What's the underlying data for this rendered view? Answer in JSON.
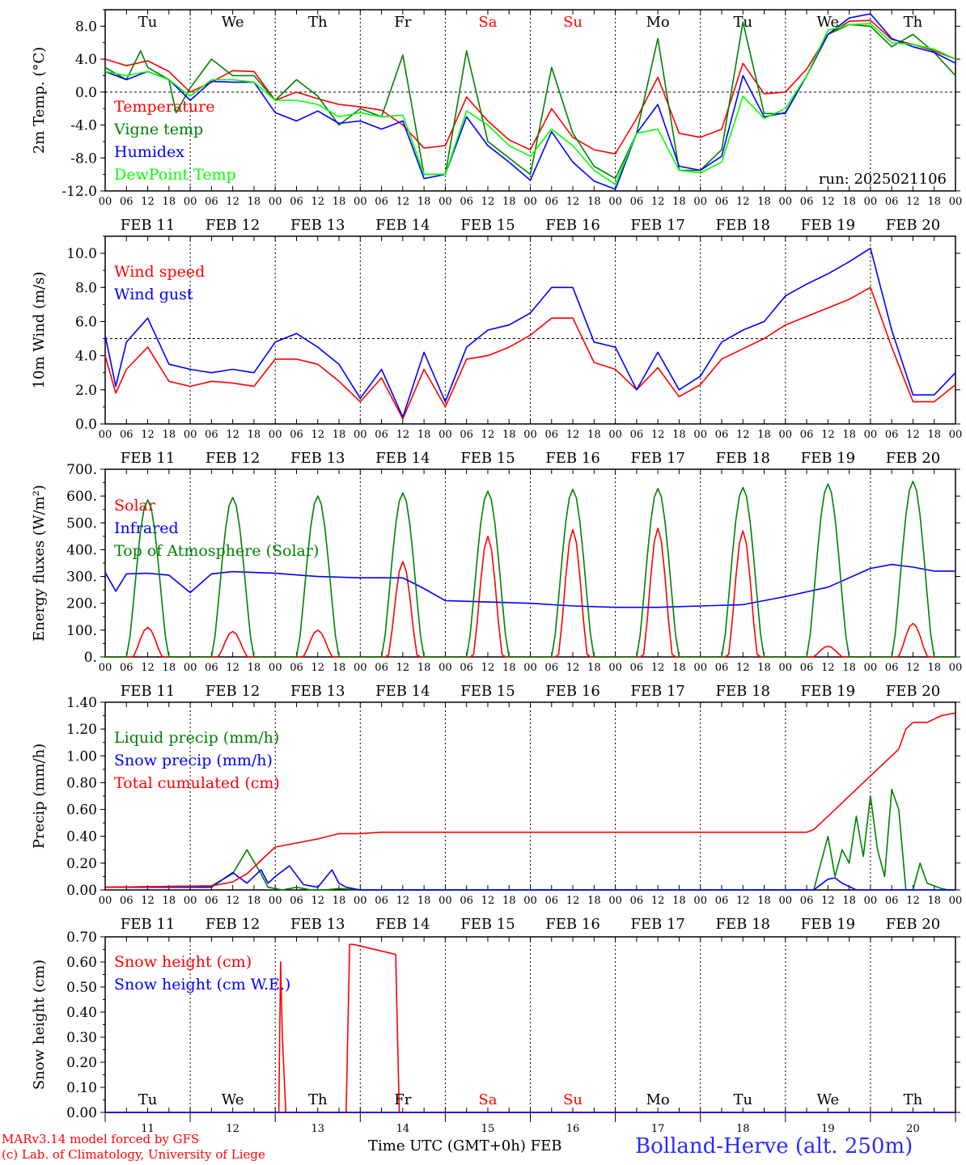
{
  "chart_data": [
    {
      "type": "line",
      "ylabel": "2m Temp. (°C)",
      "ylim": [
        -12,
        10
      ],
      "yticks": [
        "8.0",
        "4.0",
        "0.0",
        "-4.0",
        "-8.0",
        "-12.0"
      ],
      "yticks_values": [
        8,
        4,
        0,
        -4,
        -8,
        -12
      ],
      "ref_line": 0,
      "run_label": "run: 2025021106",
      "day_names": [
        "Tu",
        "We",
        "Th",
        "Fr",
        "Sa",
        "Su",
        "Mo",
        "Tu",
        "We",
        "Th"
      ],
      "series": [
        {
          "name": "Temperature",
          "color": "#ff0000",
          "x": [
            0,
            6,
            12,
            18,
            24,
            30,
            36,
            42,
            48,
            54,
            60,
            66,
            72,
            78,
            84,
            90,
            96,
            102,
            108,
            114,
            120,
            126,
            132,
            138,
            144,
            150,
            156,
            162,
            168,
            174,
            180,
            186,
            192,
            198,
            204,
            210,
            216,
            222,
            228,
            234,
            240
          ],
          "values": [
            4,
            3.2,
            3.8,
            2.5,
            0,
            1.2,
            2.6,
            2.5,
            -1,
            0,
            -0.8,
            -1.5,
            -1.8,
            -2.2,
            -4,
            -6.8,
            -6.5,
            -0.6,
            -3.5,
            -5.8,
            -7,
            -2,
            -5.5,
            -7,
            -7.5,
            -3.2,
            1.8,
            -5,
            -5.5,
            -4.5,
            3.5,
            -0.2,
            0,
            2.8,
            7,
            8.6,
            8.7,
            6.4,
            5.8,
            5,
            4
          ]
        },
        {
          "name": "Vigne temp",
          "color": "#008000",
          "x": [
            0,
            6,
            10,
            12,
            18,
            20,
            24,
            30,
            36,
            42,
            48,
            54,
            60,
            66,
            72,
            78,
            84,
            90,
            96,
            102,
            108,
            114,
            120,
            126,
            132,
            138,
            144,
            150,
            156,
            162,
            168,
            174,
            180,
            186,
            192,
            198,
            204,
            210,
            216,
            222,
            228,
            234,
            240
          ],
          "values": [
            3,
            1.5,
            5,
            3,
            1.5,
            -2.5,
            0.5,
            4,
            2,
            2,
            -1,
            1.5,
            -0.5,
            -4,
            -2,
            -3,
            4.5,
            -10,
            -10,
            5,
            -6,
            -8,
            -10,
            3,
            -5,
            -9,
            -10.5,
            -5,
            6.5,
            -9.5,
            -9.5,
            -7,
            8.5,
            -2.6,
            -2.6,
            2,
            7,
            8.2,
            8,
            5.5,
            7,
            4.8,
            2
          ]
        },
        {
          "name": "Humidex",
          "color": "#0000ff",
          "x": [
            0,
            6,
            12,
            18,
            24,
            30,
            36,
            42,
            48,
            54,
            60,
            66,
            72,
            78,
            84,
            90,
            96,
            102,
            108,
            114,
            120,
            126,
            132,
            138,
            144,
            150,
            156,
            162,
            168,
            174,
            180,
            186,
            192,
            198,
            204,
            210,
            216,
            222,
            228,
            234,
            240
          ],
          "values": [
            2.5,
            1.5,
            2.5,
            1.5,
            -1,
            1.3,
            1.2,
            1.2,
            -2.5,
            -3.5,
            -2.3,
            -3.8,
            -3.5,
            -4.5,
            -3.5,
            -10.5,
            -10,
            -3,
            -6.5,
            -8.5,
            -10.7,
            -4.8,
            -8.5,
            -10.8,
            -11.8,
            -5,
            -1.5,
            -9,
            -9.5,
            -7.8,
            2,
            -3,
            -2.5,
            2,
            7,
            9,
            9.5,
            6.5,
            5.5,
            4.8,
            3.5
          ]
        },
        {
          "name": "DewPoint Temp",
          "color": "#00ff00",
          "x": [
            0,
            6,
            12,
            18,
            24,
            30,
            36,
            42,
            48,
            54,
            60,
            66,
            72,
            78,
            84,
            90,
            96,
            102,
            108,
            114,
            120,
            126,
            132,
            138,
            144,
            150,
            156,
            162,
            168,
            174,
            180,
            186,
            192,
            198,
            204,
            210,
            216,
            222,
            228,
            234,
            240
          ],
          "values": [
            2.5,
            2,
            2.5,
            1.5,
            -0.5,
            1.5,
            1.5,
            1.2,
            -1,
            -1,
            -1.5,
            -3,
            -2.5,
            -3,
            -2.8,
            -10,
            -10,
            -2.3,
            -4,
            -6.5,
            -7.8,
            -4.5,
            -6.5,
            -9.5,
            -11.2,
            -5,
            -4.5,
            -9.5,
            -9.8,
            -8.5,
            -0.5,
            -3.2,
            -2,
            2,
            7.5,
            8.2,
            8.3,
            6,
            5.8,
            5.2,
            4
          ]
        }
      ]
    },
    {
      "type": "line",
      "ylabel": "10m Wind (m/s)",
      "ylim": [
        0,
        11
      ],
      "yticks": [
        "10.0",
        "8.0",
        "6.0",
        "4.0",
        "2.0",
        "0.0"
      ],
      "yticks_values": [
        10,
        8,
        6,
        4,
        2,
        0
      ],
      "ref_line": 5,
      "series": [
        {
          "name": "Wind speed",
          "color": "#ff0000",
          "x": [
            0,
            3,
            6,
            12,
            18,
            24,
            30,
            36,
            42,
            48,
            54,
            60,
            66,
            72,
            78,
            84,
            90,
            96,
            102,
            108,
            114,
            120,
            126,
            132,
            138,
            144,
            150,
            156,
            162,
            168,
            174,
            180,
            186,
            192,
            198,
            204,
            210,
            216,
            222,
            228,
            234,
            240
          ],
          "values": [
            4,
            1.8,
            3.2,
            4.5,
            2.5,
            2.2,
            2.5,
            2.4,
            2.2,
            3.8,
            3.8,
            3.5,
            2.5,
            1.3,
            2.7,
            0.3,
            3.2,
            1,
            3.8,
            4,
            4.5,
            5.2,
            6.2,
            6.2,
            3.6,
            3.2,
            2,
            3.3,
            1.6,
            2.3,
            3.8,
            4.4,
            5,
            5.8,
            6.3,
            6.8,
            7.3,
            8,
            4.5,
            1.3,
            1.3,
            2.3
          ]
        },
        {
          "name": "Wind gust",
          "color": "#0000ff",
          "x": [
            0,
            3,
            6,
            12,
            18,
            24,
            30,
            36,
            42,
            48,
            54,
            60,
            66,
            72,
            78,
            84,
            90,
            96,
            102,
            108,
            114,
            120,
            126,
            132,
            138,
            144,
            150,
            156,
            162,
            168,
            174,
            180,
            186,
            192,
            198,
            204,
            210,
            216,
            222,
            228,
            234,
            240
          ],
          "values": [
            5.2,
            2.2,
            4.8,
            6.2,
            3.5,
            3.2,
            3,
            3.2,
            3,
            4.8,
            5.3,
            4.5,
            3.5,
            1.5,
            3.2,
            0.4,
            4.2,
            1.3,
            4.5,
            5.5,
            5.8,
            6.5,
            8,
            8,
            4.8,
            4.5,
            2,
            4.2,
            2,
            2.8,
            4.8,
            5.5,
            6,
            7.5,
            8.2,
            8.8,
            9.5,
            10.3,
            5.5,
            1.7,
            1.7,
            3
          ]
        }
      ]
    },
    {
      "type": "line",
      "ylabel": "Energy fluxes (W/m²)",
      "ylim": [
        0,
        700
      ],
      "yticks": [
        "700.",
        "600.",
        "500.",
        "400.",
        "300.",
        "200.",
        "100.",
        "0."
      ],
      "yticks_values": [
        700,
        600,
        500,
        400,
        300,
        200,
        100,
        0
      ],
      "series": [
        {
          "name": "Solar",
          "color": "#ff0000",
          "peaks": [
            110,
            95,
            100,
            355,
            450,
            475,
            480,
            470,
            40,
            125
          ]
        },
        {
          "name": "Infrared",
          "color": "#0000ff",
          "x": [
            0,
            3,
            6,
            12,
            18,
            24,
            30,
            36,
            48,
            60,
            72,
            84,
            90,
            96,
            108,
            120,
            132,
            144,
            156,
            168,
            180,
            192,
            204,
            216,
            222,
            228,
            234,
            240
          ],
          "values": [
            315,
            245,
            310,
            312,
            305,
            240,
            310,
            318,
            312,
            300,
            295,
            295,
            255,
            210,
            205,
            200,
            190,
            185,
            185,
            190,
            195,
            225,
            260,
            330,
            345,
            335,
            320,
            320
          ]
        },
        {
          "name": "Top of Atmosphere (Solar)",
          "color": "#008000",
          "peaks": [
            585,
            595,
            600,
            612,
            618,
            625,
            628,
            632,
            645,
            655
          ]
        }
      ]
    },
    {
      "type": "line",
      "ylabel": "Precip (mm/h)",
      "ylim": [
        0,
        1.4
      ],
      "yticks": [
        "1.40",
        "1.20",
        "1.00",
        "0.80",
        "0.60",
        "0.40",
        "0.20",
        "0.00"
      ],
      "yticks_values": [
        1.4,
        1.2,
        1.0,
        0.8,
        0.6,
        0.4,
        0.2,
        0
      ],
      "series": [
        {
          "name": "Liquid precip (mm/h)",
          "color": "#008000",
          "x": [
            0,
            30,
            36,
            40,
            44,
            46,
            48,
            50,
            54,
            58,
            62,
            66,
            72,
            80,
            200,
            204,
            206,
            208,
            210,
            212,
            214,
            216,
            218,
            220,
            222,
            224,
            226,
            228,
            230,
            232,
            234,
            236,
            238,
            240
          ],
          "values": [
            0.02,
            0.03,
            0.12,
            0.3,
            0.12,
            0.02,
            0.01,
            0,
            0.02,
            0,
            0,
            0.01,
            0,
            0,
            0,
            0.4,
            0.1,
            0.3,
            0.2,
            0.55,
            0.25,
            0.7,
            0.3,
            0.1,
            0.75,
            0.6,
            0,
            0,
            0.2,
            0.05,
            0.03,
            0.01,
            0,
            0
          ]
        },
        {
          "name": "Snow precip (mm/h)",
          "color": "#0000ff",
          "x": [
            0,
            30,
            36,
            40,
            44,
            46,
            48,
            52,
            56,
            60,
            64,
            66,
            68,
            72,
            80,
            200,
            204,
            206,
            208,
            212,
            240
          ],
          "values": [
            0.02,
            0.02,
            0.13,
            0.05,
            0.15,
            0.05,
            0.1,
            0.18,
            0.04,
            0.02,
            0.15,
            0.05,
            0.02,
            0,
            0,
            0,
            0.08,
            0.09,
            0.05,
            0,
            0
          ]
        },
        {
          "name": "Total cumulated (cm)",
          "color": "#ff0000",
          "x": [
            0,
            30,
            36,
            40,
            44,
            48,
            54,
            60,
            66,
            72,
            78,
            84,
            96,
            198,
            200,
            204,
            208,
            212,
            216,
            220,
            224,
            226,
            228,
            232,
            236,
            240
          ],
          "values": [
            0.02,
            0.03,
            0.06,
            0.12,
            0.22,
            0.32,
            0.35,
            0.38,
            0.42,
            0.42,
            0.43,
            0.43,
            0.43,
            0.43,
            0.45,
            0.55,
            0.65,
            0.75,
            0.85,
            0.95,
            1.05,
            1.2,
            1.25,
            1.25,
            1.3,
            1.32
          ]
        }
      ]
    },
    {
      "type": "line",
      "ylabel": "Snow height (cm)",
      "ylim": [
        0,
        0.7
      ],
      "yticks": [
        "0.70",
        "0.60",
        "0.50",
        "0.40",
        "0.30",
        "0.20",
        "0.10",
        "0.00"
      ],
      "yticks_values": [
        0.7,
        0.6,
        0.5,
        0.4,
        0.3,
        0.2,
        0.1,
        0
      ],
      "day_names": [
        "Tu",
        "We",
        "Th",
        "Fr",
        "Sa",
        "Su",
        "Mo",
        "Tu",
        "We",
        "Th"
      ],
      "day_numbers": [
        "11",
        "12",
        "13",
        "14",
        "15",
        "16",
        "17",
        "18",
        "19",
        "20"
      ],
      "series": [
        {
          "name": "Snow height (cm)",
          "color": "#ff0000",
          "x": [
            0,
            49,
            49.5,
            50,
            51,
            52,
            68,
            69,
            70,
            82,
            83,
            240
          ],
          "values": [
            0,
            0,
            0.6,
            0.3,
            0,
            0,
            0,
            0.67,
            0.67,
            0.63,
            0,
            0
          ]
        },
        {
          "name": "Snow height (cm W.E.)",
          "color": "#0000ff",
          "x": [
            0,
            240
          ],
          "values": [
            0,
            0
          ]
        }
      ]
    }
  ],
  "x_axis": {
    "hour_ticks": [
      "00",
      "06",
      "12",
      "18"
    ],
    "end_tick": "00",
    "dates": [
      "FEB 11",
      "FEB 12",
      "FEB 13",
      "FEB 14",
      "FEB 15",
      "FEB 16",
      "FEB 17",
      "FEB 18",
      "FEB 19",
      "FEB 20"
    ],
    "weekend_days": [
      4,
      5
    ],
    "weekend_color": "#ff0000"
  },
  "footer": {
    "model_line": "MARv3.14 model forced by GFS",
    "credit_line": "(c) Lab. of Climatology, University of Liege",
    "time_label": "Time UTC (GMT+0h) FEB",
    "station": "Bolland-Herve (alt. 250m)",
    "left_color": "#ff0000",
    "station_color": "#2a2aff"
  }
}
